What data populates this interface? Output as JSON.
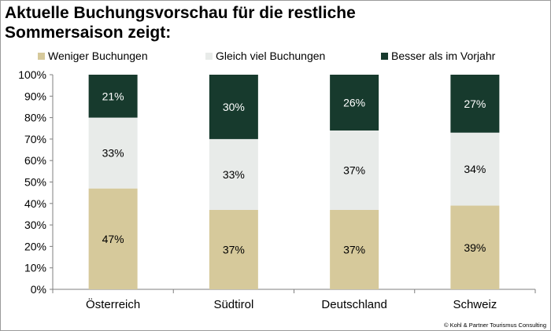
{
  "colors": {
    "weniger": "#d6c99b",
    "gleich": "#e8ebe9",
    "besser": "#173a2d"
  },
  "chart_data": {
    "type": "bar",
    "stacked": true,
    "title": "Aktuelle Buchungsvorschau für die restliche Sommersaison zeigt:",
    "categories": [
      "Österreich",
      "Südtirol",
      "Deutschland",
      "Schweiz"
    ],
    "series": [
      {
        "name": "Weniger Buchungen",
        "values": [
          47,
          37,
          37,
          39
        ],
        "labels": [
          "47%",
          "37%",
          "37%",
          "39%"
        ]
      },
      {
        "name": "Gleich viel Buchungen",
        "values": [
          33,
          33,
          37,
          34
        ],
        "labels": [
          "33%",
          "33%",
          "37%",
          "34%"
        ]
      },
      {
        "name": "Besser als im Vorjahr",
        "values": [
          21,
          30,
          26,
          27
        ],
        "labels": [
          "21%",
          "30%",
          "26%",
          "27%"
        ]
      }
    ],
    "yticks": [
      "0%",
      "10%",
      "20%",
      "30%",
      "40%",
      "50%",
      "60%",
      "70%",
      "80%",
      "90%",
      "100%"
    ],
    "ylim": [
      0,
      100
    ],
    "legend": "top"
  },
  "footer": "© Kohl & Partner Tourismus Consulting"
}
